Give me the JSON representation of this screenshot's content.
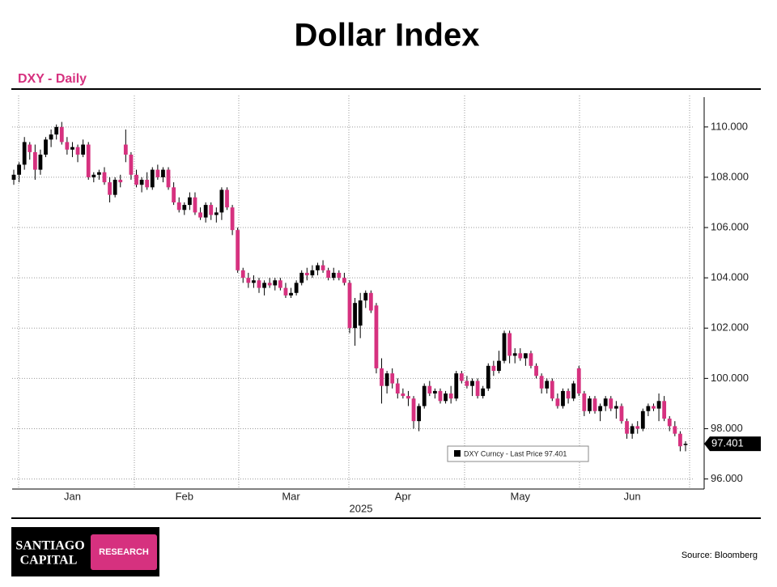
{
  "chart_data": {
    "type": "candlestick",
    "title": "Dollar Index",
    "subtitle": "DXY - Daily",
    "x_axis_label": "2025",
    "series_name": "DXY Curncy - Last Price 97.401",
    "last_price": {
      "value": 97.401,
      "label": "97.401"
    },
    "up_color": "#000000",
    "down_color": "#d6317f",
    "grid": true,
    "ylim": [
      95.6,
      111.25
    ],
    "yticks": [
      {
        "value": 96,
        "label": "96.000"
      },
      {
        "value": 98,
        "label": "98.000"
      },
      {
        "value": 100,
        "label": "100.000"
      },
      {
        "value": 102,
        "label": "102.000"
      },
      {
        "value": 104,
        "label": "104.000"
      },
      {
        "value": 106,
        "label": "106.000"
      },
      {
        "value": 108,
        "label": "108.000"
      },
      {
        "value": 110,
        "label": "110.000"
      }
    ],
    "categories": [
      null,
      null,
      null,
      null,
      null,
      null,
      null,
      null,
      null,
      null,
      null,
      "Jan",
      null,
      null,
      null,
      null,
      null,
      null,
      null,
      null,
      null,
      null,
      null,
      null,
      null,
      null,
      null,
      null,
      null,
      null,
      null,
      null,
      "Feb",
      null,
      null,
      null,
      null,
      null,
      null,
      null,
      null,
      null,
      null,
      null,
      null,
      null,
      null,
      null,
      null,
      null,
      null,
      null,
      "Mar",
      null,
      null,
      null,
      null,
      null,
      null,
      null,
      null,
      null,
      null,
      null,
      null,
      null,
      null,
      null,
      null,
      null,
      null,
      null,
      null,
      "Apr",
      null,
      null,
      null,
      null,
      null,
      null,
      null,
      null,
      null,
      null,
      null,
      null,
      null,
      null,
      null,
      null,
      null,
      null,
      null,
      null,
      null,
      "May",
      null,
      null,
      null,
      null,
      null,
      null,
      null,
      null,
      null,
      null,
      null,
      null,
      null,
      null,
      null,
      null,
      null,
      null,
      null,
      null,
      "Jun",
      null,
      null,
      null,
      null,
      null,
      null,
      null,
      null,
      null,
      null
    ],
    "open": [
      107.9,
      108.1,
      108.5,
      109.3,
      109.0,
      108.3,
      108.9,
      109.5,
      109.7,
      110.0,
      109.4,
      109.1,
      109.2,
      108.9,
      109.3,
      108.0,
      108.1,
      108.2,
      107.8,
      107.3,
      107.9,
      109.3,
      108.9,
      108.1,
      107.7,
      107.9,
      107.6,
      108.3,
      108.0,
      108.3,
      107.6,
      107.0,
      106.7,
      106.9,
      107.2,
      106.6,
      106.4,
      106.9,
      106.5,
      106.6,
      107.5,
      106.8,
      105.9,
      104.3,
      104.0,
      103.8,
      103.9,
      103.6,
      103.8,
      103.7,
      103.9,
      103.6,
      103.3,
      103.4,
      103.8,
      104.2,
      104.1,
      104.3,
      104.5,
      104.3,
      104.0,
      104.2,
      104.0,
      103.8,
      102.0,
      102.1,
      103.1,
      103.4,
      102.9,
      100.4,
      99.7,
      100.2,
      99.8,
      99.4,
      99.3,
      99.2,
      98.3,
      98.9,
      99.7,
      99.4,
      99.5,
      99.1,
      99.4,
      99.2,
      100.2,
      99.9,
      99.7,
      99.9,
      99.3,
      99.6,
      100.5,
      100.3,
      100.7,
      101.8,
      100.9,
      101.0,
      100.8,
      101.0,
      100.5,
      100.1,
      99.6,
      99.9,
      99.2,
      98.9,
      99.5,
      99.2,
      100.4,
      99.4,
      98.7,
      99.2,
      98.7,
      98.9,
      99.2,
      98.8,
      98.9,
      98.3,
      97.8,
      98.1,
      98.0,
      98.7,
      98.9,
      98.8,
      99.1,
      98.4,
      98.1,
      97.8,
      97.35
    ],
    "high": [
      108.3,
      108.6,
      109.6,
      109.4,
      109.3,
      109.1,
      109.6,
      109.9,
      110.1,
      110.2,
      109.6,
      109.4,
      109.3,
      109.5,
      109.4,
      108.2,
      108.3,
      108.4,
      108.0,
      108.0,
      108.1,
      109.9,
      109.0,
      108.3,
      108.0,
      108.2,
      108.4,
      108.5,
      108.4,
      108.4,
      107.8,
      107.2,
      107.0,
      107.4,
      107.4,
      106.8,
      107.0,
      107.0,
      106.8,
      107.6,
      107.6,
      106.9,
      106.0,
      104.4,
      104.2,
      104.1,
      104.0,
      103.9,
      104.0,
      104.0,
      104.0,
      103.8,
      103.6,
      103.9,
      104.3,
      104.4,
      104.5,
      104.6,
      104.7,
      104.4,
      104.4,
      104.3,
      104.2,
      103.9,
      103.2,
      103.4,
      103.5,
      103.5,
      103.0,
      100.8,
      100.3,
      100.4,
      100.0,
      99.6,
      99.5,
      99.3,
      99.0,
      99.8,
      99.9,
      99.6,
      99.6,
      99.5,
      99.7,
      100.3,
      100.3,
      100.1,
      100.0,
      100.0,
      99.7,
      100.6,
      100.7,
      101.1,
      101.9,
      101.9,
      101.2,
      101.2,
      101.0,
      101.1,
      100.6,
      100.2,
      100.0,
      100.0,
      99.4,
      99.6,
      99.6,
      99.9,
      100.5,
      99.5,
      99.3,
      99.3,
      99.0,
      99.3,
      99.3,
      99.1,
      99.0,
      98.4,
      98.2,
      98.3,
      98.8,
      99.0,
      99.0,
      99.4,
      99.3,
      98.5,
      98.3,
      97.9,
      97.5
    ],
    "low": [
      107.7,
      107.8,
      108.3,
      108.7,
      107.9,
      108.1,
      108.8,
      109.2,
      109.5,
      109.3,
      108.9,
      108.8,
      108.6,
      108.8,
      107.9,
      107.8,
      107.9,
      107.7,
      107.0,
      107.2,
      107.6,
      108.6,
      107.9,
      107.6,
      107.4,
      107.5,
      107.5,
      107.9,
      107.8,
      107.5,
      106.9,
      106.6,
      106.5,
      106.7,
      106.5,
      106.3,
      106.2,
      106.3,
      106.2,
      106.3,
      106.7,
      105.7,
      104.2,
      103.8,
      103.6,
      103.6,
      103.4,
      103.3,
      103.6,
      103.5,
      103.5,
      103.2,
      103.2,
      103.3,
      103.7,
      103.9,
      104.0,
      104.1,
      104.2,
      103.9,
      103.9,
      103.9,
      103.7,
      101.8,
      101.3,
      101.6,
      102.8,
      102.6,
      100.2,
      99.0,
      99.4,
      99.6,
      99.2,
      99.2,
      98.9,
      98.0,
      97.9,
      98.8,
      99.3,
      99.2,
      99.0,
      99.0,
      99.0,
      99.1,
      99.8,
      99.6,
      99.3,
      99.2,
      99.2,
      99.5,
      100.1,
      100.2,
      100.6,
      100.6,
      100.6,
      100.7,
      100.5,
      100.4,
      100.0,
      99.4,
      99.4,
      99.1,
      98.8,
      98.8,
      99.0,
      99.1,
      99.3,
      98.5,
      98.6,
      98.6,
      98.3,
      98.7,
      98.7,
      98.4,
      98.2,
      97.6,
      97.6,
      97.8,
      97.9,
      98.5,
      98.7,
      98.3,
      98.3,
      97.9,
      97.7,
      97.1,
      97.1
    ],
    "close": [
      108.1,
      108.5,
      109.4,
      109.0,
      108.3,
      108.9,
      109.5,
      109.7,
      110.0,
      109.4,
      109.1,
      109.2,
      108.9,
      109.3,
      108.0,
      108.1,
      108.2,
      107.8,
      107.3,
      107.9,
      107.8,
      108.9,
      108.1,
      107.7,
      107.9,
      107.6,
      108.3,
      108.0,
      108.3,
      107.6,
      107.0,
      106.7,
      106.9,
      107.2,
      106.6,
      106.4,
      106.9,
      106.5,
      106.6,
      107.5,
      106.8,
      105.9,
      104.3,
      104.0,
      103.8,
      103.9,
      103.6,
      103.8,
      103.7,
      103.9,
      103.6,
      103.3,
      103.4,
      103.8,
      104.2,
      104.1,
      104.3,
      104.5,
      104.3,
      104.0,
      104.2,
      104.0,
      103.8,
      102.0,
      103.0,
      103.1,
      103.4,
      102.7,
      100.4,
      99.7,
      100.2,
      99.8,
      99.4,
      99.3,
      99.2,
      98.3,
      98.9,
      99.7,
      99.4,
      99.5,
      99.1,
      99.4,
      99.2,
      100.2,
      99.9,
      99.7,
      99.9,
      99.3,
      99.6,
      100.5,
      100.3,
      100.7,
      101.8,
      100.9,
      101.0,
      100.8,
      101.0,
      100.5,
      100.1,
      99.6,
      99.9,
      99.2,
      98.9,
      99.5,
      99.2,
      99.8,
      99.4,
      98.7,
      99.2,
      98.7,
      98.9,
      99.2,
      98.8,
      98.9,
      98.3,
      97.8,
      98.1,
      98.0,
      98.7,
      98.9,
      98.8,
      99.1,
      98.4,
      98.1,
      97.8,
      97.3,
      97.401
    ]
  },
  "logo": {
    "line1": "SANTIAGO",
    "line2": "CAPITAL",
    "tag": "RESEARCH"
  },
  "source": "Source:  Bloomberg"
}
